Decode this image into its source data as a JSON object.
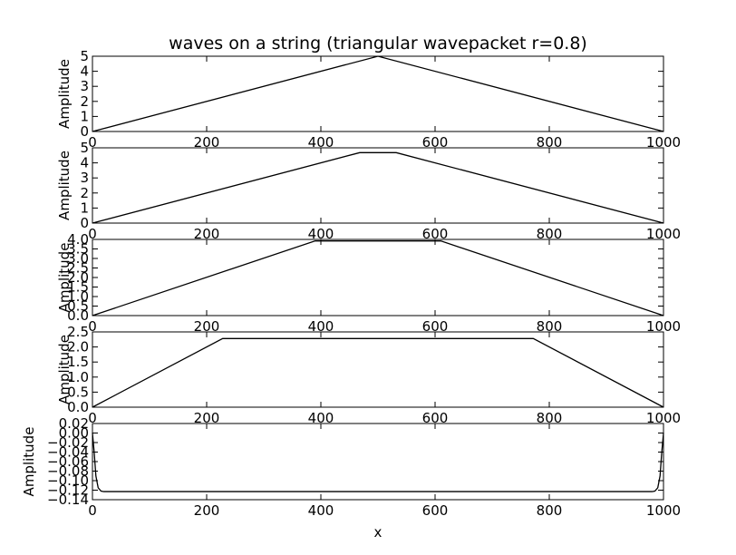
{
  "figure": {
    "title": "waves on a string (triangular wavepacket r=0.8)",
    "xlabel": "x"
  },
  "chart_data": [
    {
      "type": "line",
      "title": "waves on a string (triangular wavepacket r=0.8)",
      "xlabel": "",
      "ylabel": "Amplitude",
      "xlim": [
        0,
        1000
      ],
      "ylim": [
        0,
        5
      ],
      "xticks": [
        "0",
        "200",
        "400",
        "600",
        "800",
        "1000"
      ],
      "yticks": [
        "0",
        "1",
        "2",
        "3",
        "4",
        "5"
      ],
      "ytick_values": [
        0,
        1,
        2,
        3,
        4,
        5
      ],
      "grid": false,
      "series": [
        {
          "color": "#000000",
          "x": [
            0,
            500,
            1000
          ],
          "y": [
            0,
            5,
            0
          ]
        }
      ]
    },
    {
      "type": "line",
      "xlabel": "",
      "ylabel": "Amplitude",
      "xlim": [
        0,
        1000
      ],
      "ylim": [
        0,
        5
      ],
      "xticks": [
        "0",
        "200",
        "400",
        "600",
        "800",
        "1000"
      ],
      "yticks": [
        "0",
        "1",
        "2",
        "3",
        "4",
        "5"
      ],
      "ytick_values": [
        0,
        1,
        2,
        3,
        4,
        5
      ],
      "grid": false,
      "series": [
        {
          "color": "#000000",
          "x": [
            0,
            468,
            532,
            1000
          ],
          "y": [
            0,
            4.68,
            4.68,
            0
          ]
        }
      ]
    },
    {
      "type": "line",
      "xlabel": "",
      "ylabel": "Amplitude",
      "xlim": [
        0,
        1000
      ],
      "ylim": [
        0,
        4
      ],
      "xticks": [
        "0",
        "200",
        "400",
        "600",
        "800",
        "1000"
      ],
      "yticks": [
        "0.0",
        "0.5",
        "1.0",
        "1.5",
        "2.0",
        "2.5",
        "3.0",
        "3.5",
        "4.0"
      ],
      "ytick_values": [
        0,
        0.5,
        1,
        1.5,
        2,
        2.5,
        3,
        3.5,
        4
      ],
      "grid": false,
      "series": [
        {
          "color": "#000000",
          "x": [
            0,
            390,
            610,
            1000
          ],
          "y": [
            0,
            3.92,
            3.92,
            0
          ]
        }
      ]
    },
    {
      "type": "line",
      "xlabel": "",
      "ylabel": "Amplitude",
      "xlim": [
        0,
        1000
      ],
      "ylim": [
        0,
        2.5
      ],
      "xticks": [
        "0",
        "200",
        "400",
        "600",
        "800",
        "1000"
      ],
      "yticks": [
        "0.0",
        "0.5",
        "1.0",
        "1.5",
        "2.0",
        "2.5"
      ],
      "ytick_values": [
        0,
        0.5,
        1,
        1.5,
        2,
        2.5
      ],
      "grid": false,
      "series": [
        {
          "color": "#000000",
          "x": [
            0,
            228,
            772,
            1000
          ],
          "y": [
            0,
            2.28,
            2.28,
            0
          ]
        }
      ]
    },
    {
      "type": "line",
      "xlabel": "x",
      "ylabel": "Amplitude",
      "xlim": [
        0,
        1000
      ],
      "ylim": [
        -0.14,
        0.02
      ],
      "xticks": [
        "0",
        "200",
        "400",
        "600",
        "800",
        "1000"
      ],
      "yticks": [
        "−0.14",
        "−0.12",
        "−0.10",
        "−0.08",
        "−0.06",
        "−0.04",
        "−0.02",
        "0.00",
        "0.02"
      ],
      "ytick_values": [
        -0.14,
        -0.12,
        -0.1,
        -0.08,
        -0.06,
        -0.04,
        -0.02,
        0,
        0.02
      ],
      "grid": false,
      "series": [
        {
          "color": "#000000",
          "x": [
            0,
            3,
            6,
            10,
            15,
            20,
            980,
            985,
            990,
            994,
            997,
            1000
          ],
          "y": [
            0.0,
            -0.04,
            -0.09,
            -0.115,
            -0.122,
            -0.123,
            -0.123,
            -0.122,
            -0.115,
            -0.09,
            -0.04,
            0.0
          ]
        }
      ]
    }
  ]
}
